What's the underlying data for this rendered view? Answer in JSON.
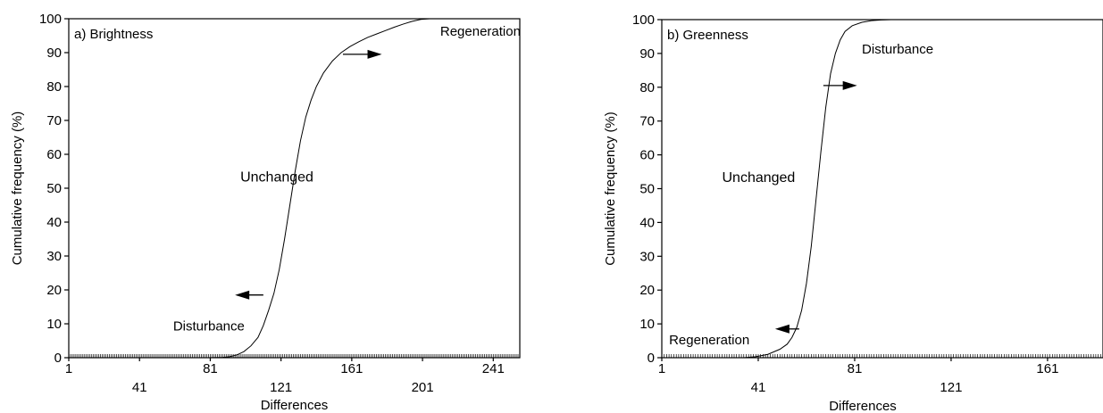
{
  "chart_data": [
    {
      "type": "line",
      "panel_label": "a) Brightness",
      "xlabel": "Differences",
      "ylabel": "Cumulative frequency (%)",
      "xlim": [
        1,
        256
      ],
      "ylim": [
        0,
        100
      ],
      "grid": false,
      "x_ticks_top": [
        1,
        81,
        161,
        241
      ],
      "x_ticks_bottom": [
        41,
        121,
        201
      ],
      "y_ticks": [
        0,
        10,
        20,
        30,
        40,
        50,
        60,
        70,
        80,
        90,
        100
      ],
      "series": [
        {
          "x": [
            1,
            80,
            88,
            92,
            96,
            100,
            104,
            108,
            111,
            114,
            117,
            120,
            123,
            126,
            129,
            132,
            135,
            138,
            141,
            145,
            150,
            155,
            160,
            165,
            170,
            175,
            180,
            185,
            190,
            195,
            200,
            205,
            210,
            256
          ],
          "y": [
            0,
            0,
            0.1,
            0.3,
            0.8,
            1.8,
            3.5,
            6,
            9.5,
            14,
            19,
            26,
            35,
            45,
            55,
            64,
            71,
            76,
            80,
            84,
            87.5,
            90,
            91.8,
            93.2,
            94.5,
            95.5,
            96.5,
            97.5,
            98.4,
            99.2,
            99.8,
            100,
            100,
            100
          ]
        }
      ],
      "annotations": [
        {
          "text": "Regeneration",
          "x": 211,
          "y": 95
        },
        {
          "text": "Unchanged",
          "x": 98,
          "y": 52
        },
        {
          "text": "Disturbance",
          "x": 60,
          "y": 8
        }
      ],
      "arrows": [
        {
          "direction": "right",
          "x_from": 156,
          "x_to": 178,
          "y": 89.5
        },
        {
          "direction": "left",
          "x_from": 111,
          "x_to": 95,
          "y": 18.5
        }
      ]
    },
    {
      "type": "line",
      "panel_label": "b) Greenness",
      "xlabel": "Differences",
      "ylabel": "Cumulative frequency (%)",
      "xlim": [
        1,
        184
      ],
      "ylim": [
        0,
        100
      ],
      "grid": false,
      "x_ticks_top": [
        1,
        81,
        161
      ],
      "x_ticks_bottom": [
        41,
        121
      ],
      "y_ticks": [
        0,
        10,
        20,
        30,
        40,
        50,
        60,
        70,
        80,
        90,
        100
      ],
      "series": [
        {
          "x": [
            1,
            35,
            40,
            45,
            50,
            53,
            55,
            57,
            59,
            61,
            63,
            65,
            67,
            69,
            71,
            73,
            75,
            77,
            80,
            84,
            88,
            92,
            96,
            100,
            105
          ],
          "y": [
            0,
            0,
            0.3,
            1,
            2.5,
            4,
            6,
            9,
            14,
            22,
            33,
            47,
            61,
            74,
            84,
            90,
            94,
            96.5,
            98.2,
            99.2,
            99.7,
            99.9,
            100,
            100,
            100
          ]
        }
      ],
      "annotations": [
        {
          "text": "Disturbance",
          "x": 84,
          "y": 90
        },
        {
          "text": "Unchanged",
          "x": 26,
          "y": 52
        },
        {
          "text": "Regeneration",
          "x": 4,
          "y": 4
        }
      ],
      "arrows": [
        {
          "direction": "right",
          "x_from": 68,
          "x_to": 82,
          "y": 80.5
        },
        {
          "direction": "left",
          "x_from": 58,
          "x_to": 48,
          "y": 8.5
        }
      ]
    }
  ]
}
